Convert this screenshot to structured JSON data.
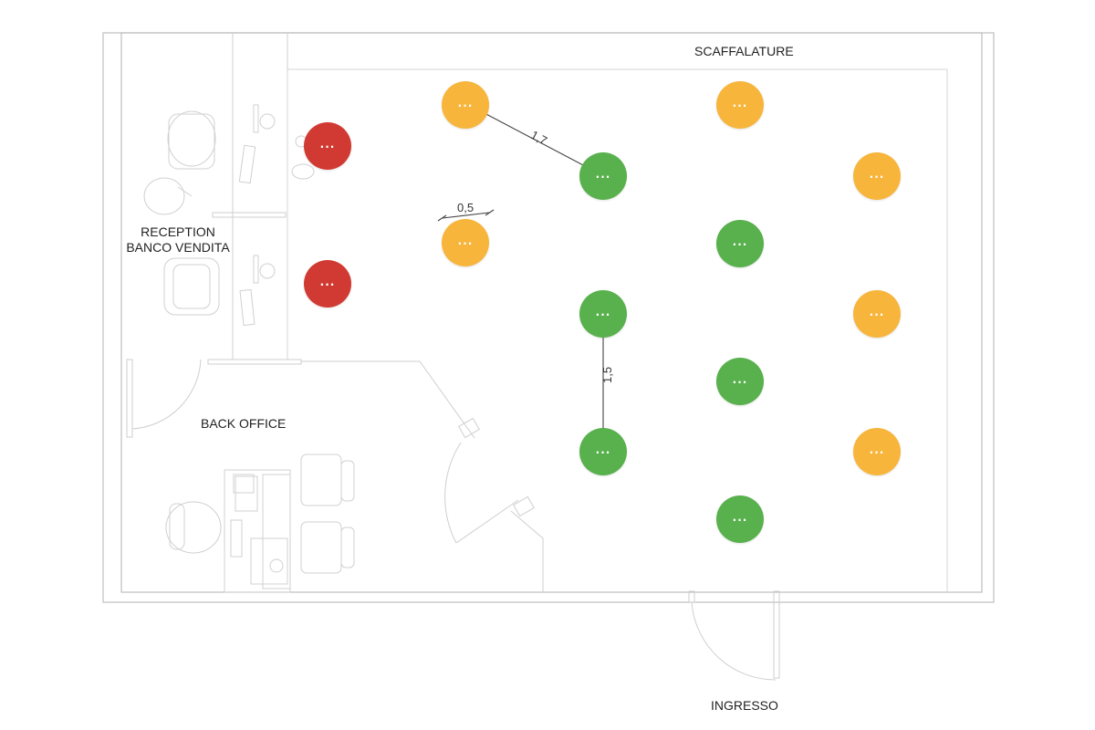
{
  "labels": {
    "scaffalature": "SCAFFALATURE",
    "reception_line1": "RECEPTION",
    "reception_line2": "BANCO VENDITA",
    "back_office": "BACK OFFICE",
    "ingresso": "INGRESSO"
  },
  "dimensions": {
    "shelf_spacing": "1,7",
    "shelf_width": "0,5",
    "aisle_spacing": "1,5"
  },
  "markers": {
    "more_label": "...",
    "colors": {
      "orange": "#f7b53c",
      "green": "#58b14c",
      "red": "#d13a32"
    }
  }
}
